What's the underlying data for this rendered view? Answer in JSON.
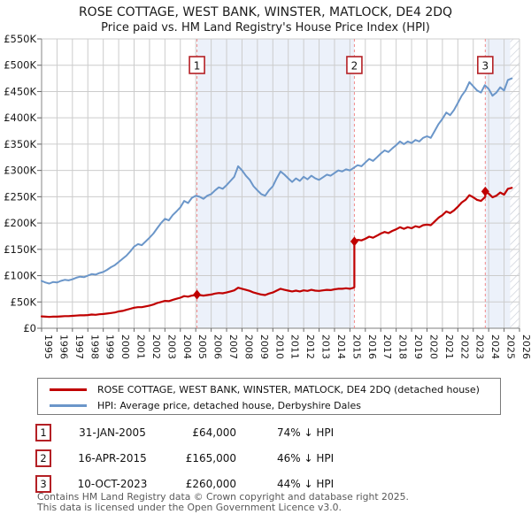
{
  "title": "ROSE COTTAGE, WEST BANK, WINSTER, MATLOCK, DE4 2DQ",
  "subtitle": "Price paid vs. HM Land Registry's House Price Index (HPI)",
  "chart_data": {
    "type": "line",
    "xlim": [
      1995,
      2026
    ],
    "ylim": [
      0,
      550
    ],
    "y_unit": "GBP thousands",
    "grid": true,
    "legend_position": "below",
    "y_tick_values": [
      0,
      50,
      100,
      150,
      200,
      250,
      300,
      350,
      400,
      450,
      500,
      550
    ],
    "y_tick_labels": [
      "£0",
      "£50K",
      "£100K",
      "£150K",
      "£200K",
      "£250K",
      "£300K",
      "£350K",
      "£400K",
      "£450K",
      "£500K",
      "£550K"
    ],
    "x_tick_labels": [
      "1995",
      "1996",
      "1997",
      "1998",
      "1999",
      "2000",
      "2001",
      "2002",
      "2003",
      "2004",
      "2005",
      "2006",
      "2007",
      "2008",
      "2009",
      "2010",
      "2011",
      "2012",
      "2013",
      "2014",
      "2015",
      "2016",
      "2017",
      "2018",
      "2019",
      "2020",
      "2021",
      "2022",
      "2023",
      "2024",
      "2025",
      "2026"
    ],
    "colors": {
      "price_paid": "#c00000",
      "hpi": "#6b96c9",
      "grid": "#cccccc",
      "axis": "#999999",
      "sale_dashed_line": "#f28b8b",
      "ownership_band": "#ecf1fa",
      "sale_box_border": "#b42025",
      "hatch": "#c4c9d4"
    },
    "series": [
      {
        "name": "ROSE COTTAGE, WEST BANK, WINSTER, MATLOCK, DE4 2DQ (detached house)",
        "color": "#c00000",
        "x": [
          1995,
          1995.25,
          1995.5,
          1995.75,
          1996,
          1996.25,
          1996.5,
          1996.75,
          1997,
          1997.25,
          1997.5,
          1997.75,
          1998,
          1998.25,
          1998.5,
          1998.75,
          1999,
          1999.25,
          1999.5,
          1999.75,
          2000,
          2000.25,
          2000.5,
          2000.75,
          2001,
          2001.25,
          2001.5,
          2001.75,
          2002,
          2002.25,
          2002.5,
          2002.75,
          2003,
          2003.25,
          2003.5,
          2003.75,
          2004,
          2004.25,
          2004.5,
          2004.75,
          2005,
          2005.08,
          2005.25,
          2005.5,
          2005.75,
          2006,
          2006.25,
          2006.5,
          2006.75,
          2007,
          2007.25,
          2007.5,
          2007.75,
          2008,
          2008.25,
          2008.5,
          2008.75,
          2009,
          2009.25,
          2009.5,
          2009.75,
          2010,
          2010.25,
          2010.5,
          2010.75,
          2011,
          2011.25,
          2011.5,
          2011.75,
          2012,
          2012.25,
          2012.5,
          2012.75,
          2013,
          2013.25,
          2013.5,
          2013.75,
          2014,
          2014.25,
          2014.5,
          2014.75,
          2015,
          2015.25,
          2015.29,
          2015.29,
          2015.5,
          2015.75,
          2016,
          2016.25,
          2016.5,
          2016.75,
          2017,
          2017.25,
          2017.5,
          2017.75,
          2018,
          2018.25,
          2018.5,
          2018.75,
          2019,
          2019.25,
          2019.5,
          2019.75,
          2020,
          2020.25,
          2020.5,
          2020.75,
          2021,
          2021.25,
          2021.5,
          2021.75,
          2022,
          2022.25,
          2022.5,
          2022.75,
          2023,
          2023.25,
          2023.5,
          2023.75,
          2023.78,
          2023.78,
          2024,
          2024.25,
          2024.5,
          2024.75,
          2025,
          2025.25,
          2025.5
        ],
        "values": [
          22.5,
          22,
          21.5,
          22,
          22,
          22.5,
          23,
          23,
          23.5,
          24,
          24.5,
          24.5,
          25,
          26,
          25.5,
          26.5,
          27,
          28,
          29,
          30,
          32,
          33,
          35,
          37,
          39,
          40,
          40,
          41.5,
          43,
          45,
          48,
          50,
          52,
          51.5,
          54,
          56,
          58,
          61,
          60,
          62,
          63,
          64,
          63,
          62,
          63,
          64,
          66,
          67,
          66.5,
          68,
          70,
          72,
          77,
          75,
          73,
          71,
          68,
          66,
          64,
          63,
          66,
          68,
          71.5,
          75,
          73,
          71.5,
          70,
          71.5,
          70,
          72,
          71,
          73,
          71.5,
          71,
          72,
          73,
          72.5,
          74,
          75,
          75,
          76,
          75,
          77,
          78,
          165,
          168,
          167,
          170,
          174,
          172,
          176,
          180,
          183,
          181,
          185,
          188,
          192,
          189,
          192,
          190,
          194,
          192,
          196,
          197,
          196,
          203,
          210,
          215,
          222,
          219,
          224,
          231,
          239,
          244,
          253,
          249,
          244,
          242,
          249,
          250,
          260,
          256,
          249,
          252,
          258,
          254,
          265,
          267
        ]
      },
      {
        "name": "HPI: Average price, detached house, Derbyshire Dales",
        "color": "#6b96c9",
        "x_start": 1995,
        "x_step": 0.25,
        "values": [
          90,
          87,
          85,
          88,
          87,
          90,
          92,
          91,
          93,
          96,
          98,
          97,
          100,
          103,
          102,
          105,
          107,
          111,
          116,
          120,
          126,
          132,
          138,
          146,
          155,
          160,
          158,
          165,
          172,
          180,
          190,
          200,
          208,
          205,
          215,
          222,
          230,
          242,
          238,
          248,
          252,
          250,
          246,
          252,
          255,
          262,
          268,
          265,
          272,
          280,
          288,
          308,
          300,
          290,
          282,
          270,
          262,
          255,
          252,
          262,
          270,
          285,
          298,
          292,
          285,
          278,
          285,
          280,
          288,
          283,
          290,
          285,
          282,
          287,
          292,
          290,
          295,
          300,
          298,
          302,
          300,
          305,
          310,
          308,
          315,
          322,
          318,
          325,
          332,
          338,
          335,
          342,
          348,
          355,
          350,
          355,
          352,
          358,
          355,
          362,
          365,
          362,
          375,
          388,
          398,
          410,
          405,
          415,
          428,
          442,
          452,
          468,
          460,
          452,
          448,
          462,
          455,
          442,
          448,
          458,
          452,
          472,
          475
        ]
      }
    ],
    "sale_markers": [
      {
        "label": "1",
        "x": 2005.08,
        "y": 64
      },
      {
        "label": "2",
        "x": 2015.29,
        "y": 165
      },
      {
        "label": "3",
        "x": 2023.78,
        "y": 260
      }
    ],
    "ownership_bands": [
      [
        2005.08,
        2015.29
      ],
      [
        2023.78,
        2025.4
      ]
    ],
    "future_band": [
      2025.4,
      2026
    ]
  },
  "legend": {
    "entries": [
      {
        "label": "ROSE COTTAGE, WEST BANK, WINSTER, MATLOCK, DE4 2DQ (detached house)",
        "color": "#c00000"
      },
      {
        "label": "HPI: Average price, detached house, Derbyshire Dales",
        "color": "#6b96c9"
      }
    ]
  },
  "table": {
    "rows": [
      {
        "marker": "1",
        "date": "31-JAN-2005",
        "price": "£64,000",
        "vs_hpi": "74% ↓ HPI"
      },
      {
        "marker": "2",
        "date": "16-APR-2015",
        "price": "£165,000",
        "vs_hpi": "46% ↓ HPI"
      },
      {
        "marker": "3",
        "date": "10-OCT-2023",
        "price": "£260,000",
        "vs_hpi": "44% ↓ HPI"
      }
    ]
  },
  "footer": {
    "line1": "Contains HM Land Registry data © Crown copyright and database right 2025.",
    "line2": "This data is licensed under the Open Government Licence v3.0."
  }
}
